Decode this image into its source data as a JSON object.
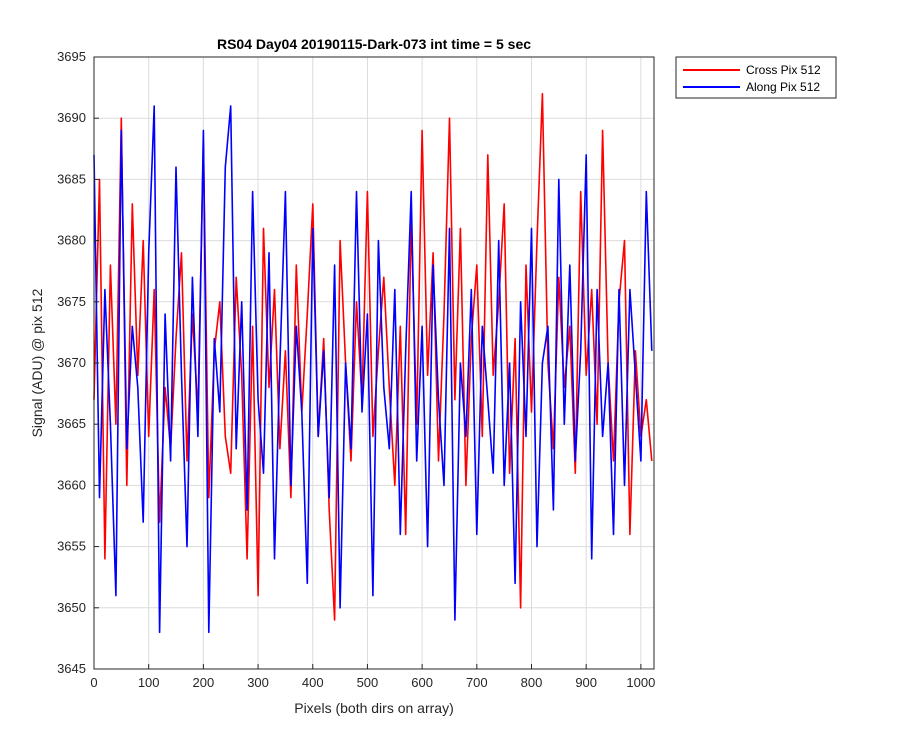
{
  "chart_data": {
    "type": "line",
    "title": "RS04 Day04 20190115-Dark-073 int time = 5 sec",
    "xlabel": "Pixels (both dirs on array)",
    "ylabel": "Signal (ADU) @ pix 512",
    "xlim": [
      0,
      1024
    ],
    "ylim": [
      3645,
      3695
    ],
    "xticks": [
      0,
      100,
      200,
      300,
      400,
      500,
      600,
      700,
      800,
      900,
      1000
    ],
    "yticks": [
      3645,
      3650,
      3655,
      3660,
      3665,
      3670,
      3675,
      3680,
      3685,
      3690,
      3695
    ],
    "grid": true,
    "legend_position": "outside-top-right",
    "series": [
      {
        "name": "Cross Pix 512",
        "color": "#ff0000",
        "x": [
          0,
          10,
          20,
          30,
          40,
          50,
          60,
          70,
          80,
          90,
          100,
          110,
          120,
          130,
          140,
          150,
          160,
          170,
          180,
          190,
          200,
          210,
          220,
          230,
          240,
          250,
          260,
          270,
          280,
          290,
          300,
          310,
          320,
          330,
          340,
          350,
          360,
          370,
          380,
          390,
          400,
          410,
          420,
          430,
          440,
          450,
          460,
          470,
          480,
          490,
          500,
          510,
          520,
          530,
          540,
          550,
          560,
          570,
          580,
          590,
          600,
          610,
          620,
          630,
          640,
          650,
          660,
          670,
          680,
          690,
          700,
          710,
          720,
          730,
          740,
          750,
          760,
          770,
          780,
          790,
          800,
          810,
          820,
          830,
          840,
          850,
          860,
          870,
          880,
          890,
          900,
          910,
          920,
          930,
          940,
          950,
          960,
          970,
          980,
          990,
          1000,
          1010,
          1020
        ],
        "y": [
          3667,
          3685,
          3654,
          3678,
          3665,
          3690,
          3660,
          3683,
          3669,
          3680,
          3664,
          3676,
          3657,
          3668,
          3663,
          3672,
          3679,
          3662,
          3674,
          3666,
          3688,
          3659,
          3671,
          3675,
          3664,
          3661,
          3677,
          3669,
          3654,
          3673,
          3651,
          3681,
          3668,
          3676,
          3663,
          3671,
          3659,
          3678,
          3666,
          3674,
          3683,
          3664,
          3672,
          3658,
          3649,
          3680,
          3670,
          3662,
          3675,
          3667,
          3684,
          3664,
          3671,
          3677,
          3668,
          3660,
          3673,
          3656,
          3682,
          3665,
          3689,
          3669,
          3679,
          3662,
          3674,
          3690,
          3667,
          3681,
          3660,
          3672,
          3678,
          3664,
          3687,
          3669,
          3675,
          3683,
          3661,
          3672,
          3650,
          3678,
          3666,
          3680,
          3692,
          3670,
          3663,
          3677,
          3668,
          3673,
          3661,
          3684,
          3669,
          3676,
          3665,
          3689,
          3670,
          3662,
          3675,
          3680,
          3656,
          3671,
          3664,
          3667,
          3662
        ]
      },
      {
        "name": "Along Pix 512",
        "color": "#0000ff",
        "x": [
          0,
          10,
          20,
          30,
          40,
          50,
          60,
          70,
          80,
          90,
          100,
          110,
          120,
          130,
          140,
          150,
          160,
          170,
          180,
          190,
          200,
          210,
          220,
          230,
          240,
          250,
          260,
          270,
          280,
          290,
          300,
          310,
          320,
          330,
          340,
          350,
          360,
          370,
          380,
          390,
          400,
          410,
          420,
          430,
          440,
          450,
          460,
          470,
          480,
          490,
          500,
          510,
          520,
          530,
          540,
          550,
          560,
          570,
          580,
          590,
          600,
          610,
          620,
          630,
          640,
          650,
          660,
          670,
          680,
          690,
          700,
          710,
          720,
          730,
          740,
          750,
          760,
          770,
          780,
          790,
          800,
          810,
          820,
          830,
          840,
          850,
          860,
          870,
          880,
          890,
          900,
          910,
          920,
          930,
          940,
          950,
          960,
          970,
          980,
          990,
          1000,
          1010,
          1020
        ],
        "y": [
          3687,
          3659,
          3676,
          3665,
          3651,
          3689,
          3663,
          3673,
          3668,
          3657,
          3679,
          3691,
          3648,
          3674,
          3662,
          3686,
          3669,
          3655,
          3677,
          3664,
          3689,
          3648,
          3672,
          3666,
          3686,
          3691,
          3663,
          3675,
          3658,
          3684,
          3667,
          3661,
          3679,
          3654,
          3670,
          3684,
          3660,
          3673,
          3666,
          3652,
          3681,
          3664,
          3671,
          3659,
          3678,
          3650,
          3670,
          3663,
          3684,
          3666,
          3674,
          3651,
          3680,
          3668,
          3663,
          3676,
          3656,
          3671,
          3684,
          3662,
          3673,
          3655,
          3678,
          3667,
          3660,
          3681,
          3649,
          3670,
          3664,
          3676,
          3656,
          3673,
          3667,
          3661,
          3680,
          3660,
          3670,
          3652,
          3675,
          3664,
          3681,
          3655,
          3670,
          3673,
          3658,
          3685,
          3665,
          3678,
          3662,
          3671,
          3687,
          3654,
          3676,
          3664,
          3670,
          3656,
          3676,
          3660,
          3676,
          3669,
          3662,
          3684,
          3671
        ]
      }
    ]
  }
}
